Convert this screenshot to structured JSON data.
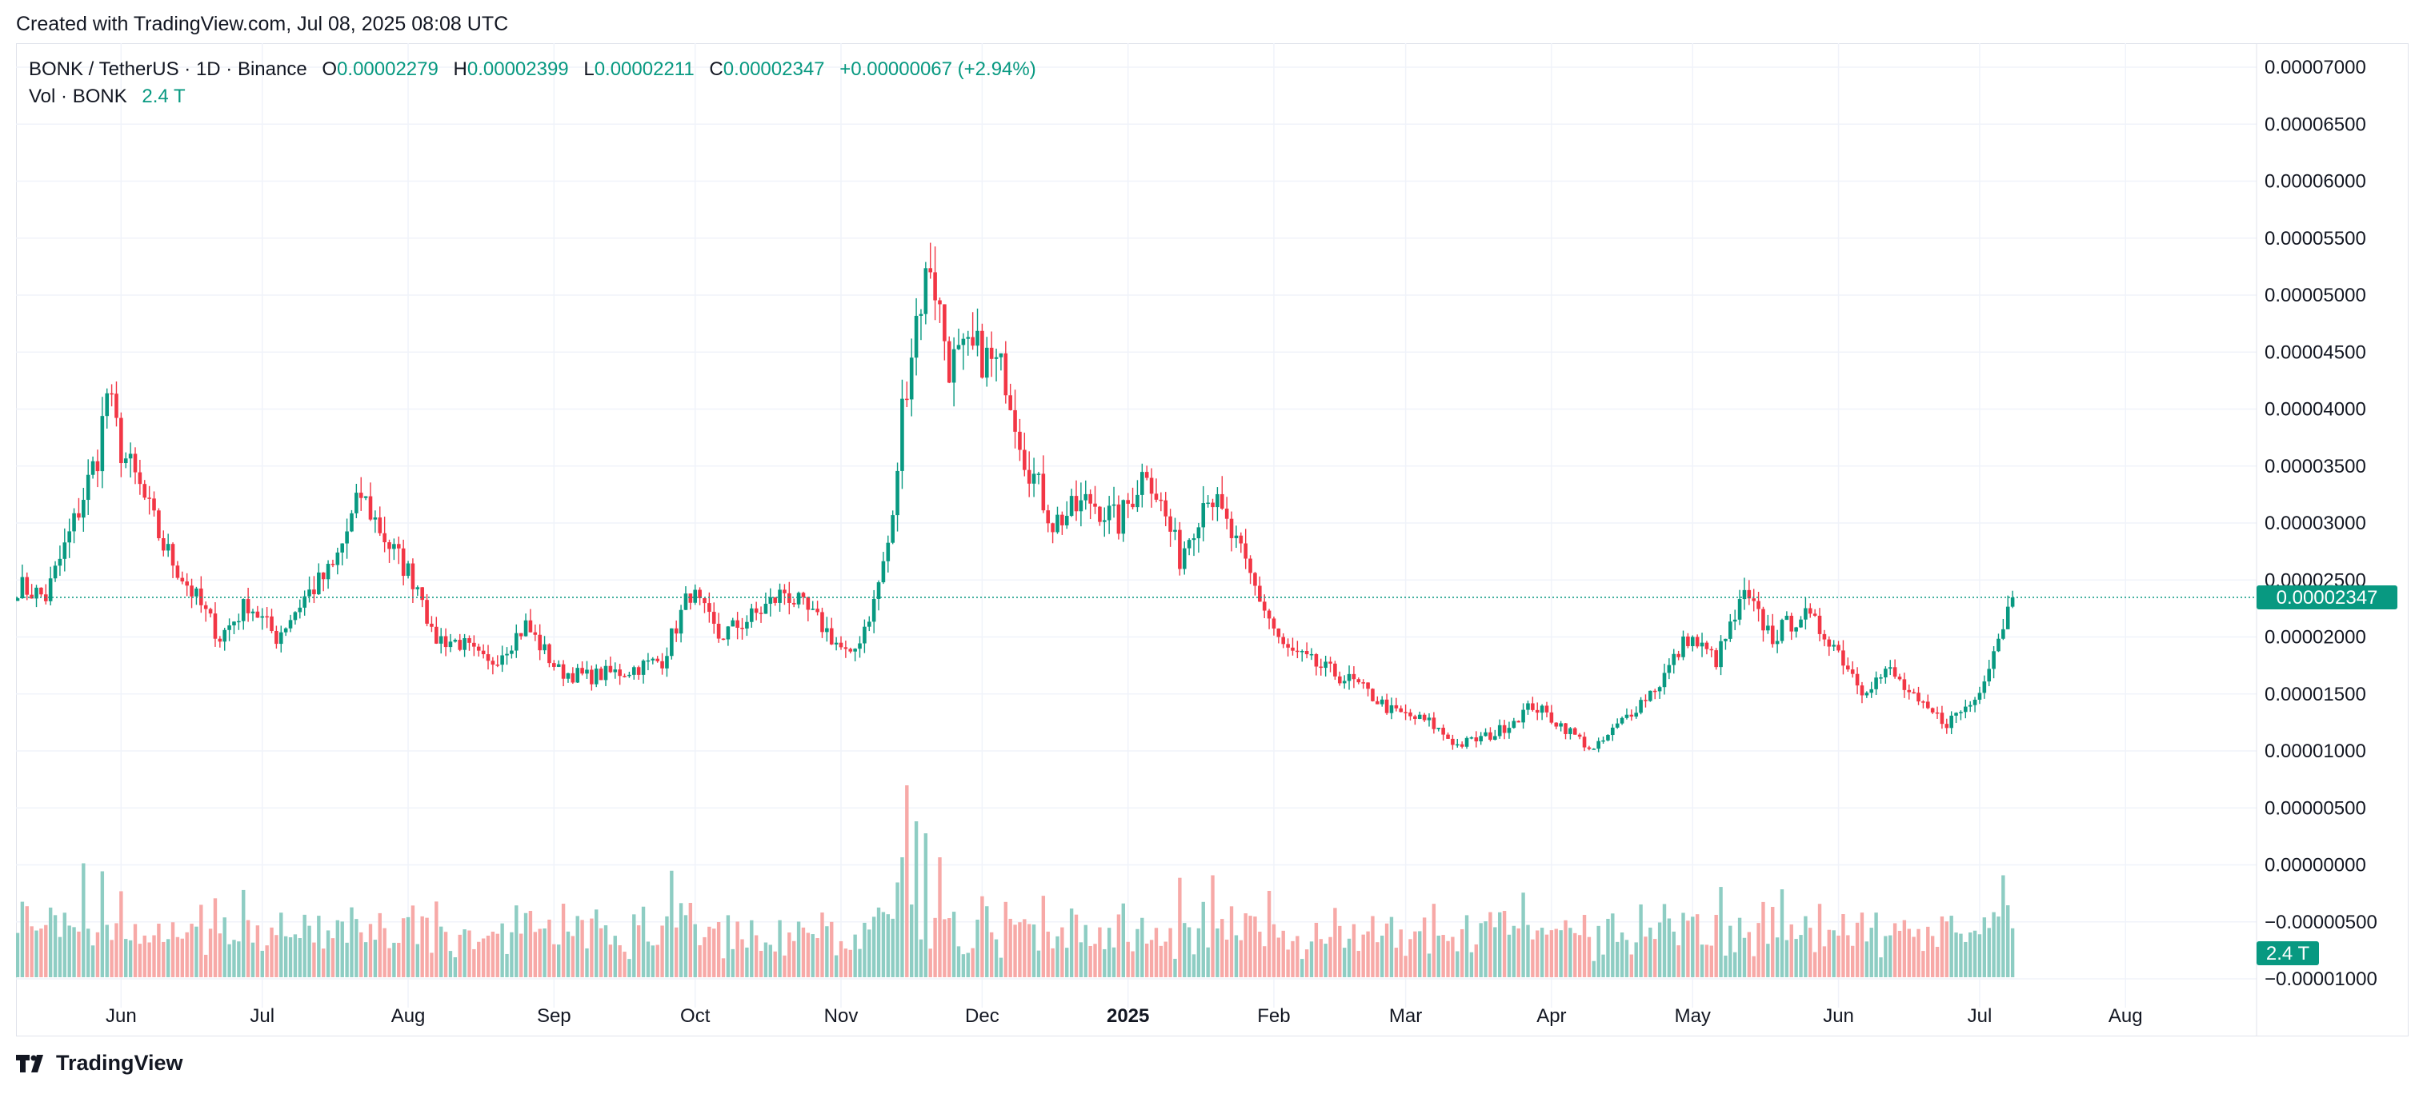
{
  "caption": "Created with TradingView.com, Jul 08, 2025 08:08 UTC",
  "brand": "TradingView",
  "legend": {
    "symbol": "BONK / TetherUS · 1D · Binance",
    "open_label": "O",
    "open": "0.00002279",
    "high_label": "H",
    "high": "0.00002399",
    "low_label": "L",
    "low": "0.00002211",
    "close_label": "C",
    "close": "0.00002347",
    "change": "+0.00000067 (+2.94%)",
    "vol_label": "Vol · BONK",
    "vol": "2.4 T"
  },
  "colors": {
    "up": "#089981",
    "down": "#f23645",
    "up_volume": "#8ecdc3",
    "down_volume": "#f7a9a7",
    "grid": "#f0f3fa",
    "price_line": "#089981"
  },
  "chart_data": {
    "type": "candlestick",
    "title": "BONK / TetherUS · 1D · Binance",
    "ylim": [
      -1e-05,
      7e-05
    ],
    "y_ticks": [
      "0.00007000",
      "0.00006500",
      "0.00006000",
      "0.00005500",
      "0.00005000",
      "0.00004500",
      "0.00004000",
      "0.00003500",
      "0.00003000",
      "0.00002500",
      "0.00002000",
      "0.00001500",
      "0.00001000",
      "0.00000500",
      "0.00000000",
      "−0.00000500",
      "−0.00001000"
    ],
    "x_ticks": [
      "Jun",
      "Jul",
      "Aug",
      "Sep",
      "Oct",
      "Nov",
      "Dec",
      "2025",
      "Feb",
      "Mar",
      "Apr",
      "May",
      "Jun",
      "Jul",
      "Aug"
    ],
    "last_price": "0.00002347",
    "last_volume": "2.4 T",
    "price_path": [
      [
        "2024-05-10",
        2.45e-05
      ],
      [
        "2024-05-16",
        2.35e-05
      ],
      [
        "2024-05-22",
        3e-05
      ],
      [
        "2024-05-27",
        3.6e-05
      ],
      [
        "2024-05-29",
        4.15e-05
      ],
      [
        "2024-06-01",
        3.65e-05
      ],
      [
        "2024-06-05",
        3.3e-05
      ],
      [
        "2024-06-10",
        2.8e-05
      ],
      [
        "2024-06-16",
        2.4e-05
      ],
      [
        "2024-06-22",
        2e-05
      ],
      [
        "2024-06-28",
        2.3e-05
      ],
      [
        "2024-07-04",
        2e-05
      ],
      [
        "2024-07-10",
        2.35e-05
      ],
      [
        "2024-07-16",
        2.6e-05
      ],
      [
        "2024-07-22",
        3.25e-05
      ],
      [
        "2024-07-28",
        2.8e-05
      ],
      [
        "2024-08-04",
        2.4e-05
      ],
      [
        "2024-08-06",
        2e-05
      ],
      [
        "2024-08-12",
        1.95e-05
      ],
      [
        "2024-08-18",
        1.75e-05
      ],
      [
        "2024-08-26",
        2.1e-05
      ],
      [
        "2024-09-02",
        1.7e-05
      ],
      [
        "2024-09-08",
        1.65e-05
      ],
      [
        "2024-09-16",
        1.7e-05
      ],
      [
        "2024-09-24",
        1.8e-05
      ],
      [
        "2024-09-30",
        2.4e-05
      ],
      [
        "2024-10-06",
        2e-05
      ],
      [
        "2024-10-14",
        2.2e-05
      ],
      [
        "2024-10-20",
        2.4e-05
      ],
      [
        "2024-10-28",
        2.1e-05
      ],
      [
        "2024-11-03",
        1.8e-05
      ],
      [
        "2024-11-08",
        2.3e-05
      ],
      [
        "2024-11-12",
        3e-05
      ],
      [
        "2024-11-14",
        4e-05
      ],
      [
        "2024-11-17",
        4.8e-05
      ],
      [
        "2024-11-20",
        5.3e-05
      ],
      [
        "2024-11-24",
        4.4e-05
      ],
      [
        "2024-11-30",
        4.5e-05
      ],
      [
        "2024-12-06",
        4.3e-05
      ],
      [
        "2024-12-10",
        3.6e-05
      ],
      [
        "2024-12-16",
        3e-05
      ],
      [
        "2024-12-24",
        3.2e-05
      ],
      [
        "2024-12-30",
        3e-05
      ],
      [
        "2025-01-05",
        3.5e-05
      ],
      [
        "2025-01-12",
        2.7e-05
      ],
      [
        "2025-01-18",
        3.3e-05
      ],
      [
        "2025-01-24",
        2.8e-05
      ],
      [
        "2025-01-30",
        2.25e-05
      ],
      [
        "2025-02-03",
        1.9e-05
      ],
      [
        "2025-02-10",
        1.75e-05
      ],
      [
        "2025-02-18",
        1.6e-05
      ],
      [
        "2025-02-26",
        1.35e-05
      ],
      [
        "2025-03-06",
        1.25e-05
      ],
      [
        "2025-03-12",
        1.05e-05
      ],
      [
        "2025-03-20",
        1.15e-05
      ],
      [
        "2025-03-28",
        1.4e-05
      ],
      [
        "2025-04-04",
        1.2e-05
      ],
      [
        "2025-04-10",
        1e-05
      ],
      [
        "2025-04-18",
        1.35e-05
      ],
      [
        "2025-04-24",
        1.6e-05
      ],
      [
        "2025-04-30",
        2e-05
      ],
      [
        "2025-05-06",
        1.8e-05
      ],
      [
        "2025-05-12",
        2.35e-05
      ],
      [
        "2025-05-18",
        2e-05
      ],
      [
        "2025-05-24",
        2.2e-05
      ],
      [
        "2025-05-30",
        2e-05
      ],
      [
        "2025-06-06",
        1.55e-05
      ],
      [
        "2025-06-12",
        1.7e-05
      ],
      [
        "2025-06-18",
        1.4e-05
      ],
      [
        "2025-06-24",
        1.25e-05
      ],
      [
        "2025-06-30",
        1.45e-05
      ],
      [
        "2025-07-04",
        1.9e-05
      ],
      [
        "2025-07-08",
        2.35e-05
      ]
    ]
  }
}
